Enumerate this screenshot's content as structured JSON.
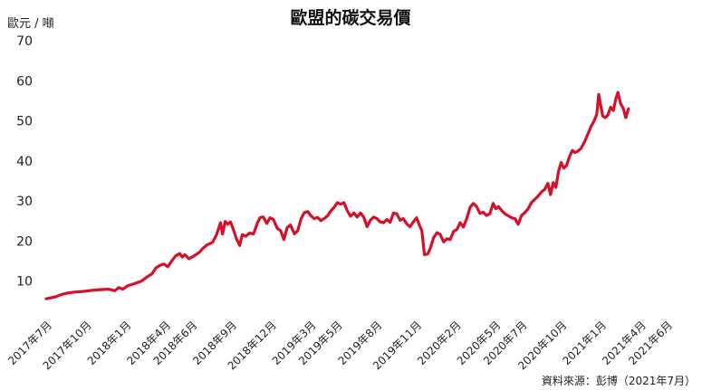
{
  "chart_data": {
    "type": "line",
    "title": "歐盟的碳交易價",
    "ylabel": "歐元 / 噸",
    "xlabel": "",
    "source": "資料來源：彭博（2021年7月）",
    "ylim": [
      0,
      70
    ],
    "yticks": [
      10,
      20,
      30,
      40,
      50,
      60,
      70
    ],
    "grid": false,
    "line_color": "#d7102a",
    "xticks": [
      {
        "label": "2017年7月",
        "t": 0
      },
      {
        "label": "2017年10月",
        "t": 3
      },
      {
        "label": "2018年1月",
        "t": 6
      },
      {
        "label": "2018年4月",
        "t": 9
      },
      {
        "label": "2018年6月",
        "t": 11
      },
      {
        "label": "2018年9月",
        "t": 14
      },
      {
        "label": "2018年12月",
        "t": 17
      },
      {
        "label": "2019年3月",
        "t": 20
      },
      {
        "label": "2019年5月",
        "t": 22
      },
      {
        "label": "2019年8月",
        "t": 25
      },
      {
        "label": "2019年11月",
        "t": 28
      },
      {
        "label": "2020年2月",
        "t": 31
      },
      {
        "label": "2020年5月",
        "t": 34
      },
      {
        "label": "2020年7月",
        "t": 36
      },
      {
        "label": "2020年10月",
        "t": 39
      },
      {
        "label": "2021年1月",
        "t": 42
      },
      {
        "label": "2021年4月",
        "t": 45
      },
      {
        "label": "2021年6月",
        "t": 47
      }
    ],
    "series": [
      {
        "values": [
          [
            -0.2,
            5.6
          ],
          [
            0.5,
            6.1
          ],
          [
            1.0,
            6.7
          ],
          [
            1.5,
            7.1
          ],
          [
            2.0,
            7.3
          ],
          [
            2.5,
            7.4
          ],
          [
            3.0,
            7.6
          ],
          [
            3.5,
            7.8
          ],
          [
            4.0,
            7.9
          ],
          [
            4.5,
            8.0
          ],
          [
            5.0,
            7.6
          ],
          [
            5.3,
            8.4
          ],
          [
            5.6,
            8.0
          ],
          [
            6.0,
            8.9
          ],
          [
            6.5,
            9.4
          ],
          [
            7.0,
            10.0
          ],
          [
            7.5,
            11.2
          ],
          [
            7.8,
            11.8
          ],
          [
            8.1,
            13.3
          ],
          [
            8.4,
            13.9
          ],
          [
            8.7,
            14.3
          ],
          [
            9.0,
            13.6
          ],
          [
            9.3,
            15.0
          ],
          [
            9.6,
            16.3
          ],
          [
            9.9,
            16.9
          ],
          [
            10.1,
            16.0
          ],
          [
            10.3,
            16.6
          ],
          [
            10.6,
            15.6
          ],
          [
            11.0,
            16.3
          ],
          [
            11.4,
            17.2
          ],
          [
            11.7,
            18.3
          ],
          [
            12.0,
            19.1
          ],
          [
            12.4,
            19.7
          ],
          [
            12.7,
            21.6
          ],
          [
            13.0,
            24.6
          ],
          [
            13.15,
            21.8
          ],
          [
            13.35,
            24.9
          ],
          [
            13.55,
            24.2
          ],
          [
            13.75,
            24.8
          ],
          [
            13.95,
            23.1
          ],
          [
            14.2,
            20.6
          ],
          [
            14.45,
            18.9
          ],
          [
            14.65,
            21.6
          ],
          [
            14.9,
            21.2
          ],
          [
            15.2,
            22.0
          ],
          [
            15.5,
            21.8
          ],
          [
            15.8,
            24.6
          ],
          [
            16.0,
            25.9
          ],
          [
            16.25,
            26.0
          ],
          [
            16.5,
            24.4
          ],
          [
            16.75,
            25.8
          ],
          [
            17.0,
            25.4
          ],
          [
            17.3,
            23.2
          ],
          [
            17.55,
            22.6
          ],
          [
            17.8,
            20.4
          ],
          [
            18.05,
            23.4
          ],
          [
            18.3,
            24.0
          ],
          [
            18.6,
            21.8
          ],
          [
            18.85,
            22.6
          ],
          [
            19.1,
            25.6
          ],
          [
            19.35,
            27.1
          ],
          [
            19.6,
            27.4
          ],
          [
            19.85,
            26.3
          ],
          [
            20.1,
            25.6
          ],
          [
            20.35,
            25.9
          ],
          [
            20.6,
            25.1
          ],
          [
            20.85,
            25.6
          ],
          [
            21.1,
            26.3
          ],
          [
            21.35,
            27.5
          ],
          [
            21.6,
            28.4
          ],
          [
            21.85,
            29.6
          ],
          [
            22.1,
            29.2
          ],
          [
            22.35,
            29.6
          ],
          [
            22.6,
            27.6
          ],
          [
            22.85,
            26.2
          ],
          [
            23.1,
            27.0
          ],
          [
            23.35,
            26.0
          ],
          [
            23.6,
            27.0
          ],
          [
            23.85,
            26.0
          ],
          [
            24.1,
            23.6
          ],
          [
            24.35,
            25.2
          ],
          [
            24.6,
            26.0
          ],
          [
            24.85,
            25.6
          ],
          [
            25.1,
            24.8
          ],
          [
            25.35,
            24.6
          ],
          [
            25.6,
            25.4
          ],
          [
            25.85,
            24.7
          ],
          [
            26.1,
            27.0
          ],
          [
            26.35,
            26.8
          ],
          [
            26.6,
            25.2
          ],
          [
            26.85,
            25.6
          ],
          [
            27.1,
            24.3
          ],
          [
            27.35,
            23.6
          ],
          [
            27.6,
            24.8
          ],
          [
            27.85,
            25.8
          ],
          [
            28.1,
            23.7
          ],
          [
            28.25,
            22.6
          ],
          [
            28.45,
            16.6
          ],
          [
            28.7,
            16.8
          ],
          [
            28.9,
            18.3
          ],
          [
            29.15,
            20.9
          ],
          [
            29.4,
            22.1
          ],
          [
            29.65,
            21.6
          ],
          [
            29.9,
            19.8
          ],
          [
            30.15,
            20.6
          ],
          [
            30.4,
            20.4
          ],
          [
            30.65,
            22.4
          ],
          [
            30.9,
            22.9
          ],
          [
            31.15,
            24.6
          ],
          [
            31.4,
            23.5
          ],
          [
            31.65,
            25.6
          ],
          [
            31.9,
            28.4
          ],
          [
            32.15,
            29.4
          ],
          [
            32.4,
            28.6
          ],
          [
            32.65,
            26.9
          ],
          [
            32.9,
            27.2
          ],
          [
            33.15,
            26.4
          ],
          [
            33.4,
            26.8
          ],
          [
            33.65,
            29.4
          ],
          [
            33.85,
            28.1
          ],
          [
            34.05,
            28.6
          ],
          [
            34.3,
            27.6
          ],
          [
            34.55,
            26.8
          ],
          [
            34.8,
            26.3
          ],
          [
            35.05,
            25.8
          ],
          [
            35.3,
            25.6
          ],
          [
            35.55,
            24.2
          ],
          [
            35.8,
            26.4
          ],
          [
            36.05,
            27.1
          ],
          [
            36.3,
            28.1
          ],
          [
            36.55,
            29.6
          ],
          [
            36.8,
            30.4
          ],
          [
            37.05,
            31.2
          ],
          [
            37.3,
            32.2
          ],
          [
            37.55,
            32.9
          ],
          [
            37.8,
            34.4
          ],
          [
            38.0,
            31.6
          ],
          [
            38.2,
            34.6
          ],
          [
            38.4,
            33.4
          ],
          [
            38.6,
            37.4
          ],
          [
            38.8,
            39.6
          ],
          [
            39.0,
            38.2
          ],
          [
            39.2,
            38.8
          ],
          [
            39.45,
            41.2
          ],
          [
            39.65,
            42.6
          ],
          [
            39.85,
            42.1
          ],
          [
            40.05,
            42.4
          ],
          [
            40.3,
            43.1
          ],
          [
            40.55,
            44.6
          ],
          [
            40.8,
            46.5
          ],
          [
            41.05,
            48.5
          ],
          [
            41.3,
            50.0
          ],
          [
            41.5,
            51.6
          ],
          [
            41.65,
            56.6
          ],
          [
            41.8,
            53.8
          ],
          [
            41.95,
            51.2
          ],
          [
            42.15,
            50.8
          ],
          [
            42.35,
            51.5
          ],
          [
            42.55,
            53.4
          ],
          [
            42.75,
            52.6
          ],
          [
            42.95,
            55.6
          ],
          [
            43.1,
            57.1
          ],
          [
            43.3,
            54.3
          ],
          [
            43.5,
            53.2
          ],
          [
            43.7,
            50.8
          ],
          [
            43.9,
            53.0
          ]
        ]
      }
    ]
  }
}
